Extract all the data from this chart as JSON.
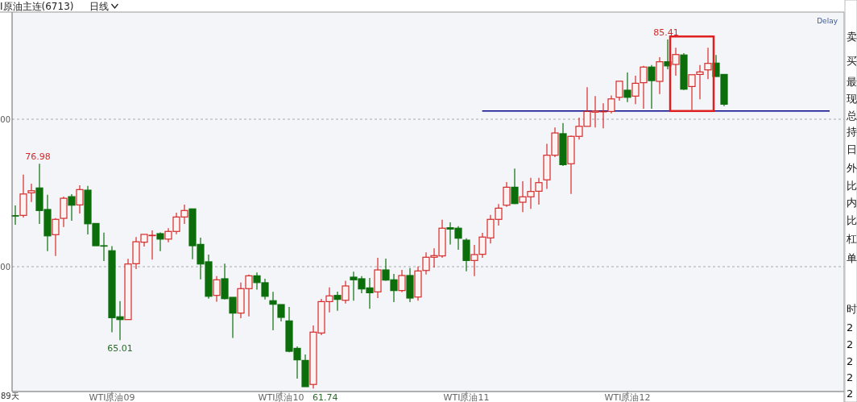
{
  "chart_data": {
    "type": "candlestick",
    "title": "I原油主连(6713)",
    "subtitle": "日线",
    "categories": [
      null,
      null,
      null,
      null,
      null,
      null,
      null,
      null,
      null,
      null,
      null,
      null,
      "WTI原油09",
      null,
      null,
      null,
      null,
      null,
      null,
      null,
      null,
      null,
      null,
      null,
      null,
      null,
      null,
      null,
      null,
      null,
      null,
      null,
      null,
      "WTI原油10",
      null,
      null,
      null,
      null,
      null,
      null,
      null,
      null,
      null,
      null,
      null,
      null,
      null,
      null,
      null,
      null,
      null,
      null,
      null,
      null,
      null,
      null,
      "WTI原油11",
      null,
      null,
      null,
      null,
      null,
      null,
      null,
      null,
      null,
      null,
      null,
      null,
      null,
      null,
      null,
      null,
      null,
      null,
      null,
      "WTI原油12",
      null,
      null,
      null,
      null,
      null,
      null,
      null,
      null,
      null,
      null,
      null,
      null
    ],
    "ohlc": [
      [
        73.46,
        74.15,
        72.84,
        73.46
      ],
      [
        73.48,
        76.25,
        73.33,
        74.93
      ],
      [
        75.01,
        75.63,
        74.39,
        75.15
      ],
      [
        75.34,
        76.98,
        72.9,
        73.81
      ],
      [
        73.88,
        74.88,
        71.05,
        72.09
      ],
      [
        72.17,
        73.3,
        70.73,
        73.21
      ],
      [
        73.28,
        74.75,
        72.69,
        74.64
      ],
      [
        74.75,
        74.92,
        73.11,
        74.17
      ],
      [
        74.19,
        75.52,
        73.61,
        75.23
      ],
      [
        75.19,
        75.48,
        72.19,
        72.91
      ],
      [
        72.93,
        72.93,
        71.42,
        71.42
      ],
      [
        71.42,
        72.31,
        70.38,
        71.42
      ],
      [
        71.08,
        71.4,
        65.54,
        66.54
      ],
      [
        66.6,
        67.67,
        65.01,
        66.41
      ],
      [
        66.41,
        70.53,
        66.41,
        70.18
      ],
      [
        70.2,
        72.01,
        69.84,
        71.69
      ],
      [
        71.66,
        72.19,
        71.37,
        72.19
      ],
      [
        72.13,
        72.46,
        70.48,
        72.13
      ],
      [
        72.24,
        72.33,
        71.05,
        71.87
      ],
      [
        71.87,
        72.61,
        71.66,
        72.39
      ],
      [
        72.39,
        73.66,
        72.2,
        73.37
      ],
      [
        73.37,
        74.21,
        72.9,
        73.81
      ],
      [
        73.92,
        73.92,
        70.51,
        71.42
      ],
      [
        71.51,
        71.97,
        69.14,
        70.18
      ],
      [
        70.33,
        70.82,
        67.83,
        67.99
      ],
      [
        68.05,
        69.36,
        67.63,
        69.11
      ],
      [
        69.18,
        70.2,
        67.78,
        67.83
      ],
      [
        67.92,
        67.92,
        65.17,
        66.85
      ],
      [
        66.85,
        68.92,
        66.5,
        68.51
      ],
      [
        68.51,
        69.47,
        66.63,
        69.38
      ],
      [
        69.38,
        69.6,
        68.45,
        68.92
      ],
      [
        68.91,
        69.18,
        67.78,
        67.99
      ],
      [
        67.69,
        68.29,
        65.68,
        67.45
      ],
      [
        67.43,
        67.43,
        66.28,
        66.56
      ],
      [
        66.32,
        67.27,
        64.19,
        64.26
      ],
      [
        64.46,
        64.59,
        62.4,
        63.68
      ],
      [
        63.64,
        64.04,
        61.86,
        61.86
      ],
      [
        62.01,
        66.01,
        61.74,
        65.56
      ],
      [
        65.5,
        67.81,
        65.36,
        67.63
      ],
      [
        67.63,
        68.6,
        66.9,
        68.02
      ],
      [
        68.05,
        68.31,
        67.01,
        67.78
      ],
      [
        67.72,
        69.05,
        67.5,
        68.69
      ],
      [
        69.29,
        69.66,
        67.69,
        69.11
      ],
      [
        69.18,
        69.36,
        68.2,
        68.49
      ],
      [
        68.56,
        69.23,
        67.14,
        68.23
      ],
      [
        68.29,
        70.6,
        67.87,
        69.78
      ],
      [
        69.78,
        70.55,
        69.05,
        69.09
      ],
      [
        69.11,
        69.51,
        67.6,
        68.38
      ],
      [
        68.38,
        69.78,
        68.27,
        69.4
      ],
      [
        69.4,
        69.91,
        67.6,
        67.87
      ],
      [
        67.94,
        70.02,
        67.69,
        69.71
      ],
      [
        69.74,
        70.97,
        69.47,
        70.64
      ],
      [
        70.64,
        71.24,
        69.93,
        70.75
      ],
      [
        70.73,
        73.19,
        70.6,
        72.61
      ],
      [
        72.64,
        73.01,
        71.51,
        72.55
      ],
      [
        72.61,
        72.75,
        71.15,
        71.93
      ],
      [
        71.8,
        71.93,
        69.69,
        70.42
      ],
      [
        70.42,
        71.48,
        69.36,
        70.82
      ],
      [
        70.84,
        72.3,
        70.6,
        72.01
      ],
      [
        71.95,
        73.51,
        71.57,
        73.21
      ],
      [
        73.21,
        74.25,
        72.79,
        73.97
      ],
      [
        74.17,
        75.74,
        74.06,
        75.39
      ],
      [
        75.39,
        76.65,
        74.25,
        74.28
      ],
      [
        74.37,
        75.79,
        73.7,
        74.74
      ],
      [
        74.74,
        76.03,
        73.92,
        75.1
      ],
      [
        75.12,
        76.03,
        74.21,
        75.7
      ],
      [
        75.89,
        78.34,
        75.28,
        77.56
      ],
      [
        77.56,
        79.44,
        77.43,
        79.07
      ],
      [
        79.02,
        79.74,
        76.83,
        76.92
      ],
      [
        76.98,
        78.89,
        74.93,
        78.84
      ],
      [
        78.84,
        80.11,
        78.62,
        79.52
      ],
      [
        79.52,
        82.17,
        79.52,
        80.53
      ],
      [
        80.48,
        81.57,
        79.44,
        80.56
      ],
      [
        80.53,
        81.08,
        79.38,
        80.53
      ],
      [
        80.53,
        81.62,
        80.4,
        81.38
      ],
      [
        81.49,
        82.58,
        81.26,
        82.58
      ],
      [
        81.97,
        83.17,
        81.16,
        81.49
      ],
      [
        81.57,
        82.95,
        81.02,
        82.44
      ],
      [
        82.48,
        83.62,
        80.71,
        83.54
      ],
      [
        83.54,
        83.68,
        80.71,
        82.62
      ],
      [
        82.57,
        84.21,
        81.71,
        83.9
      ],
      [
        83.9,
        85.41,
        83.39,
        83.62
      ],
      [
        83.72,
        84.85,
        82.95,
        84.39
      ],
      [
        84.36,
        84.48,
        81.98,
        82.04
      ],
      [
        82.22,
        83.02,
        80.62,
        83.02
      ],
      [
        83.04,
        83.68,
        81.35,
        83.21
      ],
      [
        83.35,
        84.85,
        82.72,
        83.79
      ],
      [
        83.81,
        84.36,
        82.88,
        82.9
      ],
      [
        83.04,
        83.04,
        80.89,
        81.02
      ]
    ],
    "colors": [
      "#0b6e0b",
      "#d42a2a",
      "#d42a2a",
      "#0b6e0b",
      "#0b6e0b",
      "#d42a2a",
      "#d42a2a",
      "#0b6e0b",
      "#d42a2a",
      "#0b6e0b",
      "#0b6e0b",
      "#0b6e0b",
      "#0b6e0b",
      "#0b6e0b",
      "#d42a2a",
      "#d42a2a",
      "#d42a2a",
      "#d42a2a",
      "#0b6e0b",
      "#d42a2a",
      "#d42a2a",
      "#d42a2a",
      "#0b6e0b",
      "#0b6e0b",
      "#0b6e0b",
      "#d42a2a",
      "#0b6e0b",
      "#0b6e0b",
      "#d42a2a",
      "#d42a2a",
      "#0b6e0b",
      "#0b6e0b",
      "#0b6e0b",
      "#0b6e0b",
      "#0b6e0b",
      "#0b6e0b",
      "#0b6e0b",
      "#d42a2a",
      "#d42a2a",
      "#d42a2a",
      "#0b6e0b",
      "#d42a2a",
      "#0b6e0b",
      "#0b6e0b",
      "#0b6e0b",
      "#d42a2a",
      "#0b6e0b",
      "#0b6e0b",
      "#d42a2a",
      "#0b6e0b",
      "#d42a2a",
      "#d42a2a",
      "#d42a2a",
      "#d42a2a",
      "#0b6e0b",
      "#0b6e0b",
      "#0b6e0b",
      "#d42a2a",
      "#d42a2a",
      "#d42a2a",
      "#d42a2a",
      "#d42a2a",
      "#0b6e0b",
      "#d42a2a",
      "#d42a2a",
      "#d42a2a",
      "#d42a2a",
      "#d42a2a",
      "#0b6e0b",
      "#d42a2a",
      "#d42a2a",
      "#d42a2a",
      "#d42a2a",
      "#d42a2a",
      "#d42a2a",
      "#d42a2a",
      "#0b6e0b",
      "#d42a2a",
      "#d42a2a",
      "#0b6e0b",
      "#d42a2a",
      "#0b6e0b",
      "#d42a2a",
      "#0b6e0b",
      "#d42a2a",
      "#d42a2a",
      "#d42a2a",
      "#0b6e0b",
      "#0b6e0b"
    ],
    "ylim": [
      61.53,
      87.27
    ],
    "yticks": [
      {
        "value": 70,
        "label": null
      },
      {
        "value": 80,
        "label": null
      }
    ],
    "grid": "y",
    "ref_lines": [
      {
        "axis": "y",
        "value": 80.56,
        "color": "#00008b"
      }
    ],
    "annotations": [
      "00",
      "00",
      "Delay",
      "89天",
      "61.74",
      "卖",
      "买",
      "最",
      "现",
      "总",
      "持",
      "日",
      "外",
      "比",
      "内",
      "比",
      "杠",
      "单",
      "时",
      "2",
      "2",
      "2",
      "2",
      "2",
      {
        "text": "76.98",
        "y": 76.98
      },
      {
        "text": "65.01",
        "y": 65.01
      },
      {
        "text": "85.41",
        "y": 85.41
      }
    ]
  }
}
